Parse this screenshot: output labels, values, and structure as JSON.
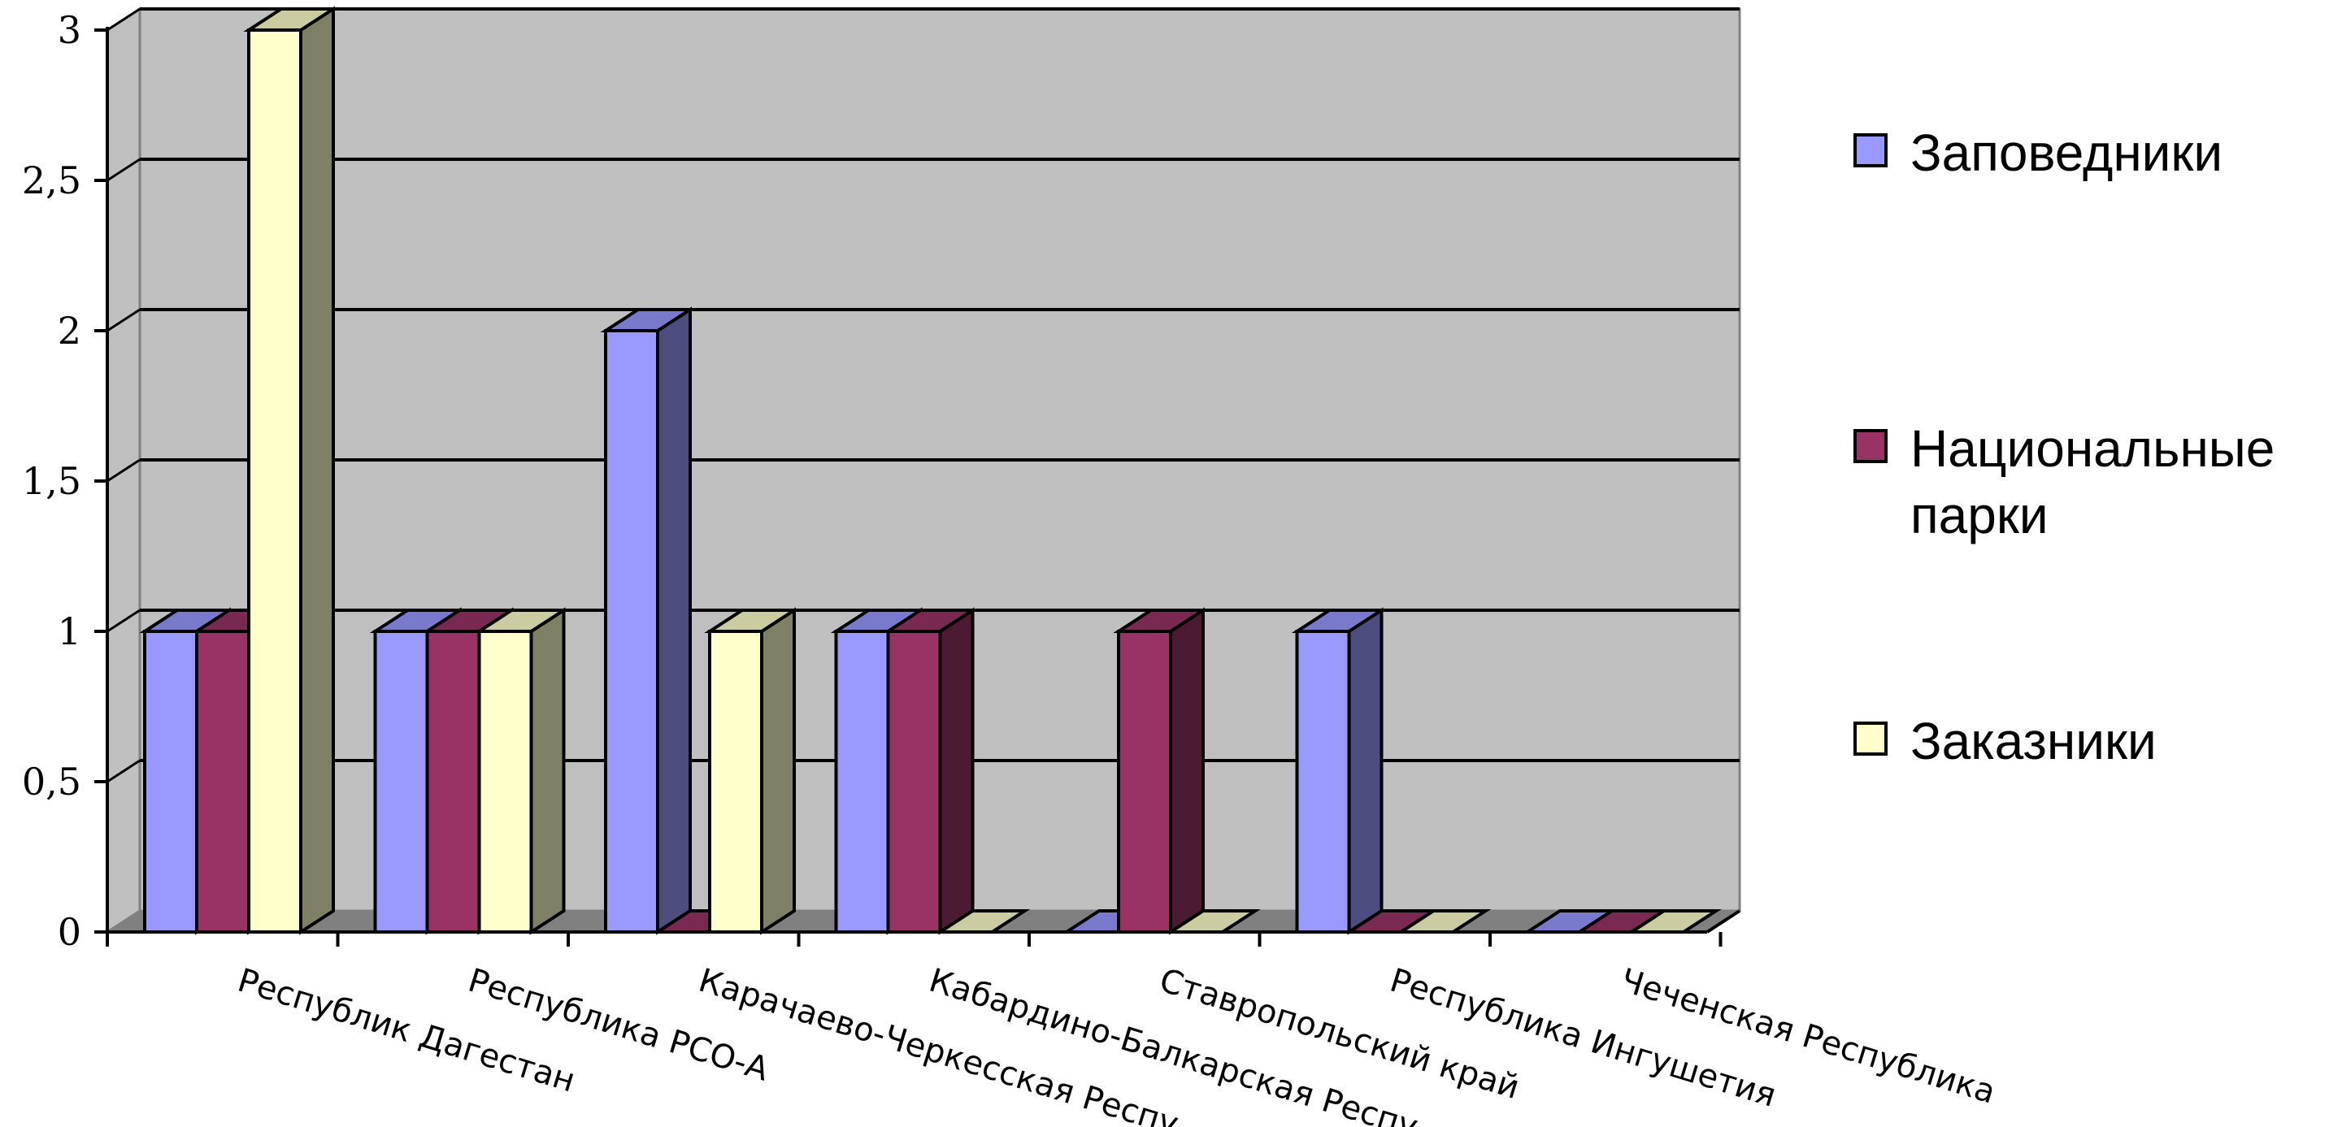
{
  "chart_data": {
    "type": "bar",
    "title": "",
    "xlabel": "",
    "ylabel": "",
    "ylim": [
      0,
      3
    ],
    "yticks": [
      "0",
      "0,5",
      "1",
      "1,5",
      "2",
      "2,5",
      "3"
    ],
    "grid": true,
    "legend_position": "right",
    "categories": [
      "Республик Дагестан",
      "Республика РСО-А",
      "Карачаево-Черкесская Респу...",
      "Кабардино-Балкарская Респу...",
      "Ставропольский край",
      "Республика Ингушетия",
      "Чеченская Республика"
    ],
    "series": [
      {
        "name": "Заповедники",
        "values": [
          1,
          1,
          2,
          1,
          0,
          1,
          0
        ],
        "color": "#9999ff"
      },
      {
        "name": "Национальные парки",
        "values": [
          1,
          1,
          0,
          1,
          1,
          0,
          0
        ],
        "color": "#993366"
      },
      {
        "name": "Заказники",
        "values": [
          3,
          1,
          1,
          0,
          0,
          0,
          0
        ],
        "color": "#ffffcc"
      }
    ],
    "legend_lines": [
      [
        "Заповедники"
      ],
      [
        "Национальные",
        "парки"
      ],
      [
        "Заказники"
      ]
    ],
    "wall_color": "#c0c0c0",
    "floor_color": "#808080"
  }
}
